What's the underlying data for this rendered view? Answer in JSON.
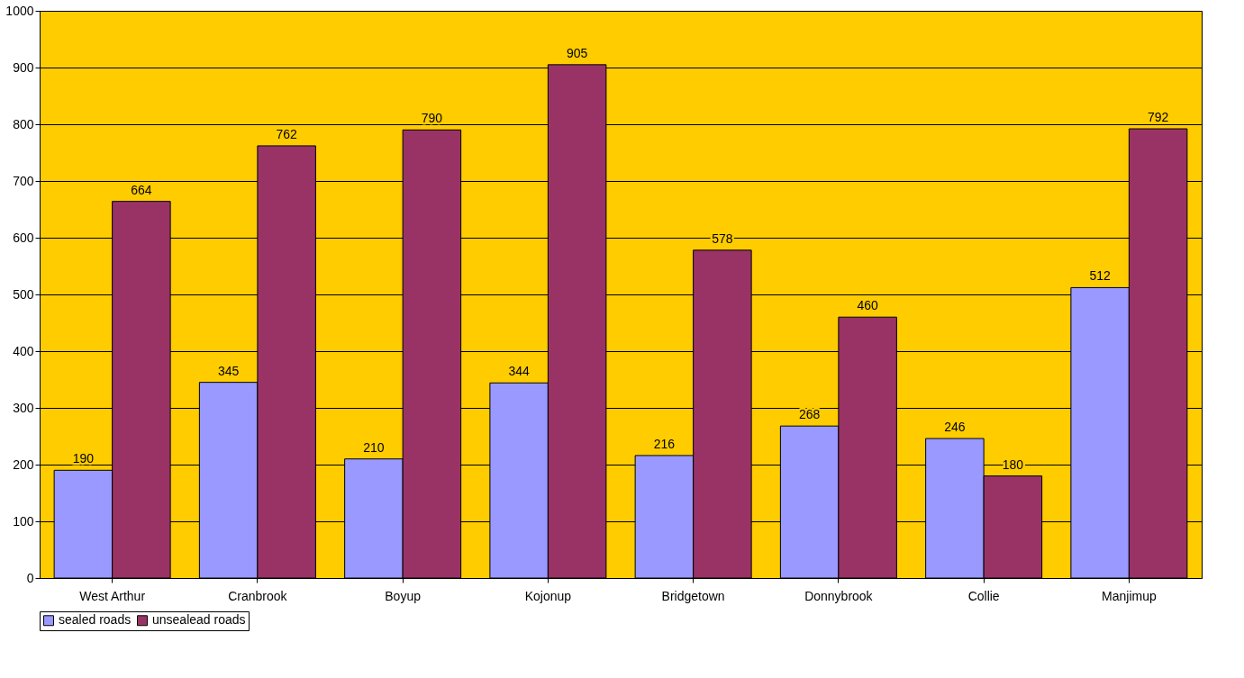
{
  "chart_data": {
    "type": "bar",
    "categories": [
      "West Arthur",
      "Cranbrook",
      "Boyup",
      "Kojonup",
      "Bridgetown",
      "Donnybrook",
      "Collie",
      "Manjimup"
    ],
    "series": [
      {
        "name": "sealed roads",
        "color": "#9999ff",
        "values": [
          190,
          345,
          210,
          344,
          216,
          268,
          246,
          512
        ]
      },
      {
        "name": "unsealead roads",
        "color": "#993366",
        "values": [
          664,
          762,
          790,
          905,
          578,
          460,
          180,
          792
        ]
      }
    ],
    "ylim": [
      0,
      1000
    ],
    "yticks": [
      0,
      100,
      200,
      300,
      400,
      500,
      600,
      700,
      800,
      900,
      {
        "value": 1000,
        "label": "1000"
      }
    ],
    "grid": "y",
    "legend": "bottom",
    "data_labels": true
  }
}
